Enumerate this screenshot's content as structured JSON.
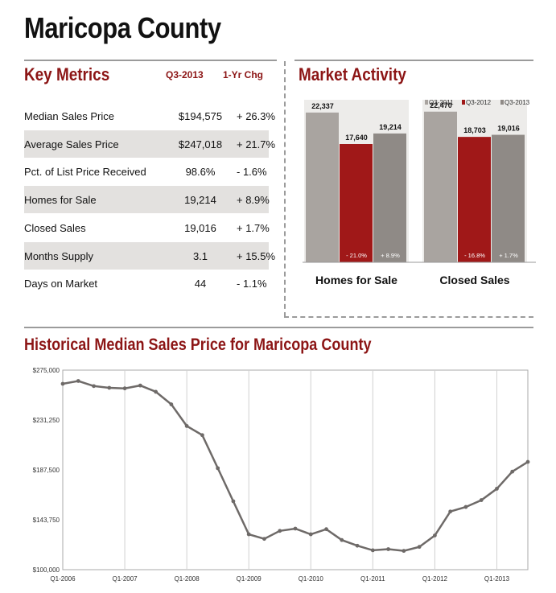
{
  "page_title": "Maricopa County",
  "key_metrics": {
    "heading": "Key Metrics",
    "col_period": "Q3-2013",
    "col_change": "1-Yr Chg",
    "rows": [
      {
        "label": "Median Sales Price",
        "value": "$194,575",
        "change": "+ 26.3%"
      },
      {
        "label": "Average Sales Price",
        "value": "$247,018",
        "change": "+ 21.7%"
      },
      {
        "label": "Pct. of List Price Received",
        "value": "98.6%",
        "change": "- 1.6%"
      },
      {
        "label": "Homes for Sale",
        "value": "19,214",
        "change": "+ 8.9%"
      },
      {
        "label": "Closed Sales",
        "value": "19,016",
        "change": "+ 1.7%"
      },
      {
        "label": "Months Supply",
        "value": "3.1",
        "change": "+ 15.5%"
      },
      {
        "label": "Days on Market",
        "value": "44",
        "change": "- 1.1%"
      }
    ]
  },
  "market_activity": {
    "heading": "Market Activity"
  },
  "historical": {
    "heading": "Historical Median Sales Price for Maricopa County"
  },
  "colors": {
    "accent_red": "#8c1515",
    "bar_gray": "#a9a4a0",
    "bar_red": "#a01818",
    "bar_dark": "#8f8a86",
    "line": "#6e6a68",
    "shade": "#e3e1df"
  },
  "chart_data": [
    {
      "type": "bar",
      "categories": [
        "Homes for Sale",
        "Closed Sales"
      ],
      "series": [
        {
          "name": "Q3-2011",
          "values": [
            22337,
            22470
          ],
          "labels": [
            "22,337",
            "22,470"
          ],
          "color": "#a9a4a0"
        },
        {
          "name": "Q3-2012",
          "values": [
            17640,
            18703
          ],
          "labels": [
            "17,640",
            "18,703"
          ],
          "color": "#a01818"
        },
        {
          "name": "Q3-2013",
          "values": [
            19214,
            19016
          ],
          "labels": [
            "19,214",
            "19,016"
          ],
          "color": "#8f8a86"
        }
      ],
      "change_labels": [
        {
          "series": "Q3-2012",
          "values": [
            "- 21.0%",
            "- 16.8%"
          ]
        },
        {
          "series": "Q3-2013",
          "values": [
            "+ 8.9%",
            "+ 1.7%"
          ]
        }
      ],
      "ylim": [
        0,
        24000
      ],
      "legend_position": "top-right",
      "grid": false
    },
    {
      "type": "line",
      "x": [
        "Q1-2006",
        "Q2-2006",
        "Q3-2006",
        "Q4-2006",
        "Q1-2007",
        "Q2-2007",
        "Q3-2007",
        "Q4-2007",
        "Q1-2008",
        "Q2-2008",
        "Q3-2008",
        "Q4-2008",
        "Q1-2009",
        "Q2-2009",
        "Q3-2009",
        "Q4-2009",
        "Q1-2010",
        "Q2-2010",
        "Q3-2010",
        "Q4-2010",
        "Q1-2011",
        "Q2-2011",
        "Q3-2011",
        "Q4-2011",
        "Q1-2012",
        "Q2-2012",
        "Q3-2012",
        "Q4-2012",
        "Q1-2013",
        "Q2-2013",
        "Q3-2013"
      ],
      "values": [
        263000,
        265500,
        261000,
        259500,
        259000,
        261500,
        256000,
        245000,
        226000,
        218000,
        189000,
        160000,
        131000,
        127000,
        134000,
        136000,
        131000,
        135500,
        126000,
        121000,
        117000,
        118000,
        116500,
        120000,
        130000,
        151000,
        155000,
        161000,
        171000,
        186000,
        194500
      ],
      "tick_labels": [
        "Q1-2006",
        "Q1-2007",
        "Q1-2008",
        "Q1-2009",
        "Q1-2010",
        "Q1-2011",
        "Q1-2012",
        "Q1-2013"
      ],
      "tick_indices": [
        0,
        4,
        8,
        12,
        16,
        20,
        24,
        28
      ],
      "y_ticks": [
        "$100,000",
        "$143,750",
        "$187,500",
        "$231,250",
        "$275,000"
      ],
      "y_tick_values": [
        100000,
        143750,
        187500,
        231250,
        275000
      ],
      "ylim": [
        100000,
        275000
      ],
      "grid": "vertical"
    }
  ]
}
